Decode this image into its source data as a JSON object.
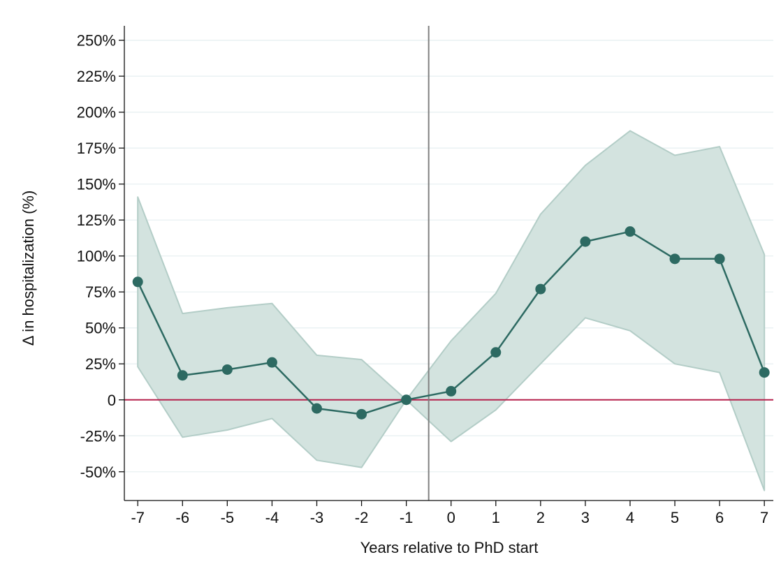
{
  "chart_data": {
    "type": "line",
    "xlabel": "Years relative to PhD start",
    "ylabel": "Δ in hospitalization (%)",
    "xlim": [
      -7.3,
      7.2
    ],
    "ylim": [
      -70,
      260
    ],
    "x_ticks": [
      -7,
      -6,
      -5,
      -4,
      -3,
      -2,
      -1,
      0,
      1,
      2,
      3,
      4,
      5,
      6,
      7
    ],
    "x_tick_labels": [
      "-7",
      "-6",
      "-5",
      "-4",
      "-3",
      "-2",
      "-1",
      "0",
      "1",
      "2",
      "3",
      "4",
      "5",
      "6",
      "7"
    ],
    "y_ticks": [
      -50,
      -25,
      0,
      25,
      50,
      75,
      100,
      125,
      150,
      175,
      200,
      225,
      250
    ],
    "y_tick_labels": [
      "-50%",
      "-25%",
      "0",
      "25%",
      "50%",
      "75%",
      "100%",
      "125%",
      "150%",
      "175%",
      "200%",
      "225%",
      "250%"
    ],
    "grid": true,
    "reference_hline": 0,
    "reference_vline": -0.5,
    "series": [
      {
        "x": [
          -7,
          -6,
          -5,
          -4,
          -3,
          -2,
          -1,
          0,
          1,
          2,
          3,
          4,
          5,
          6,
          7
        ],
        "values": [
          82,
          17,
          21,
          26,
          -6,
          -10,
          0,
          6,
          33,
          77,
          110,
          117,
          98,
          98,
          19
        ],
        "ci_lower": [
          23,
          -26,
          -21,
          -13,
          -42,
          -47,
          0,
          -29,
          -7,
          25,
          57,
          48,
          25,
          19,
          -63
        ],
        "ci_upper": [
          141,
          60,
          64,
          67,
          31,
          28,
          0,
          41,
          74,
          129,
          163,
          187,
          170,
          176,
          101
        ]
      }
    ],
    "colors": {
      "line": "#2d6a62",
      "marker": "#2d6a62",
      "ci_fill": "#d3e3df",
      "ci_edge": "#b3cdc7",
      "zero_line": "#b5214d",
      "vline": "#808080",
      "grid": "#e6eff0",
      "axis": "#111111"
    }
  }
}
